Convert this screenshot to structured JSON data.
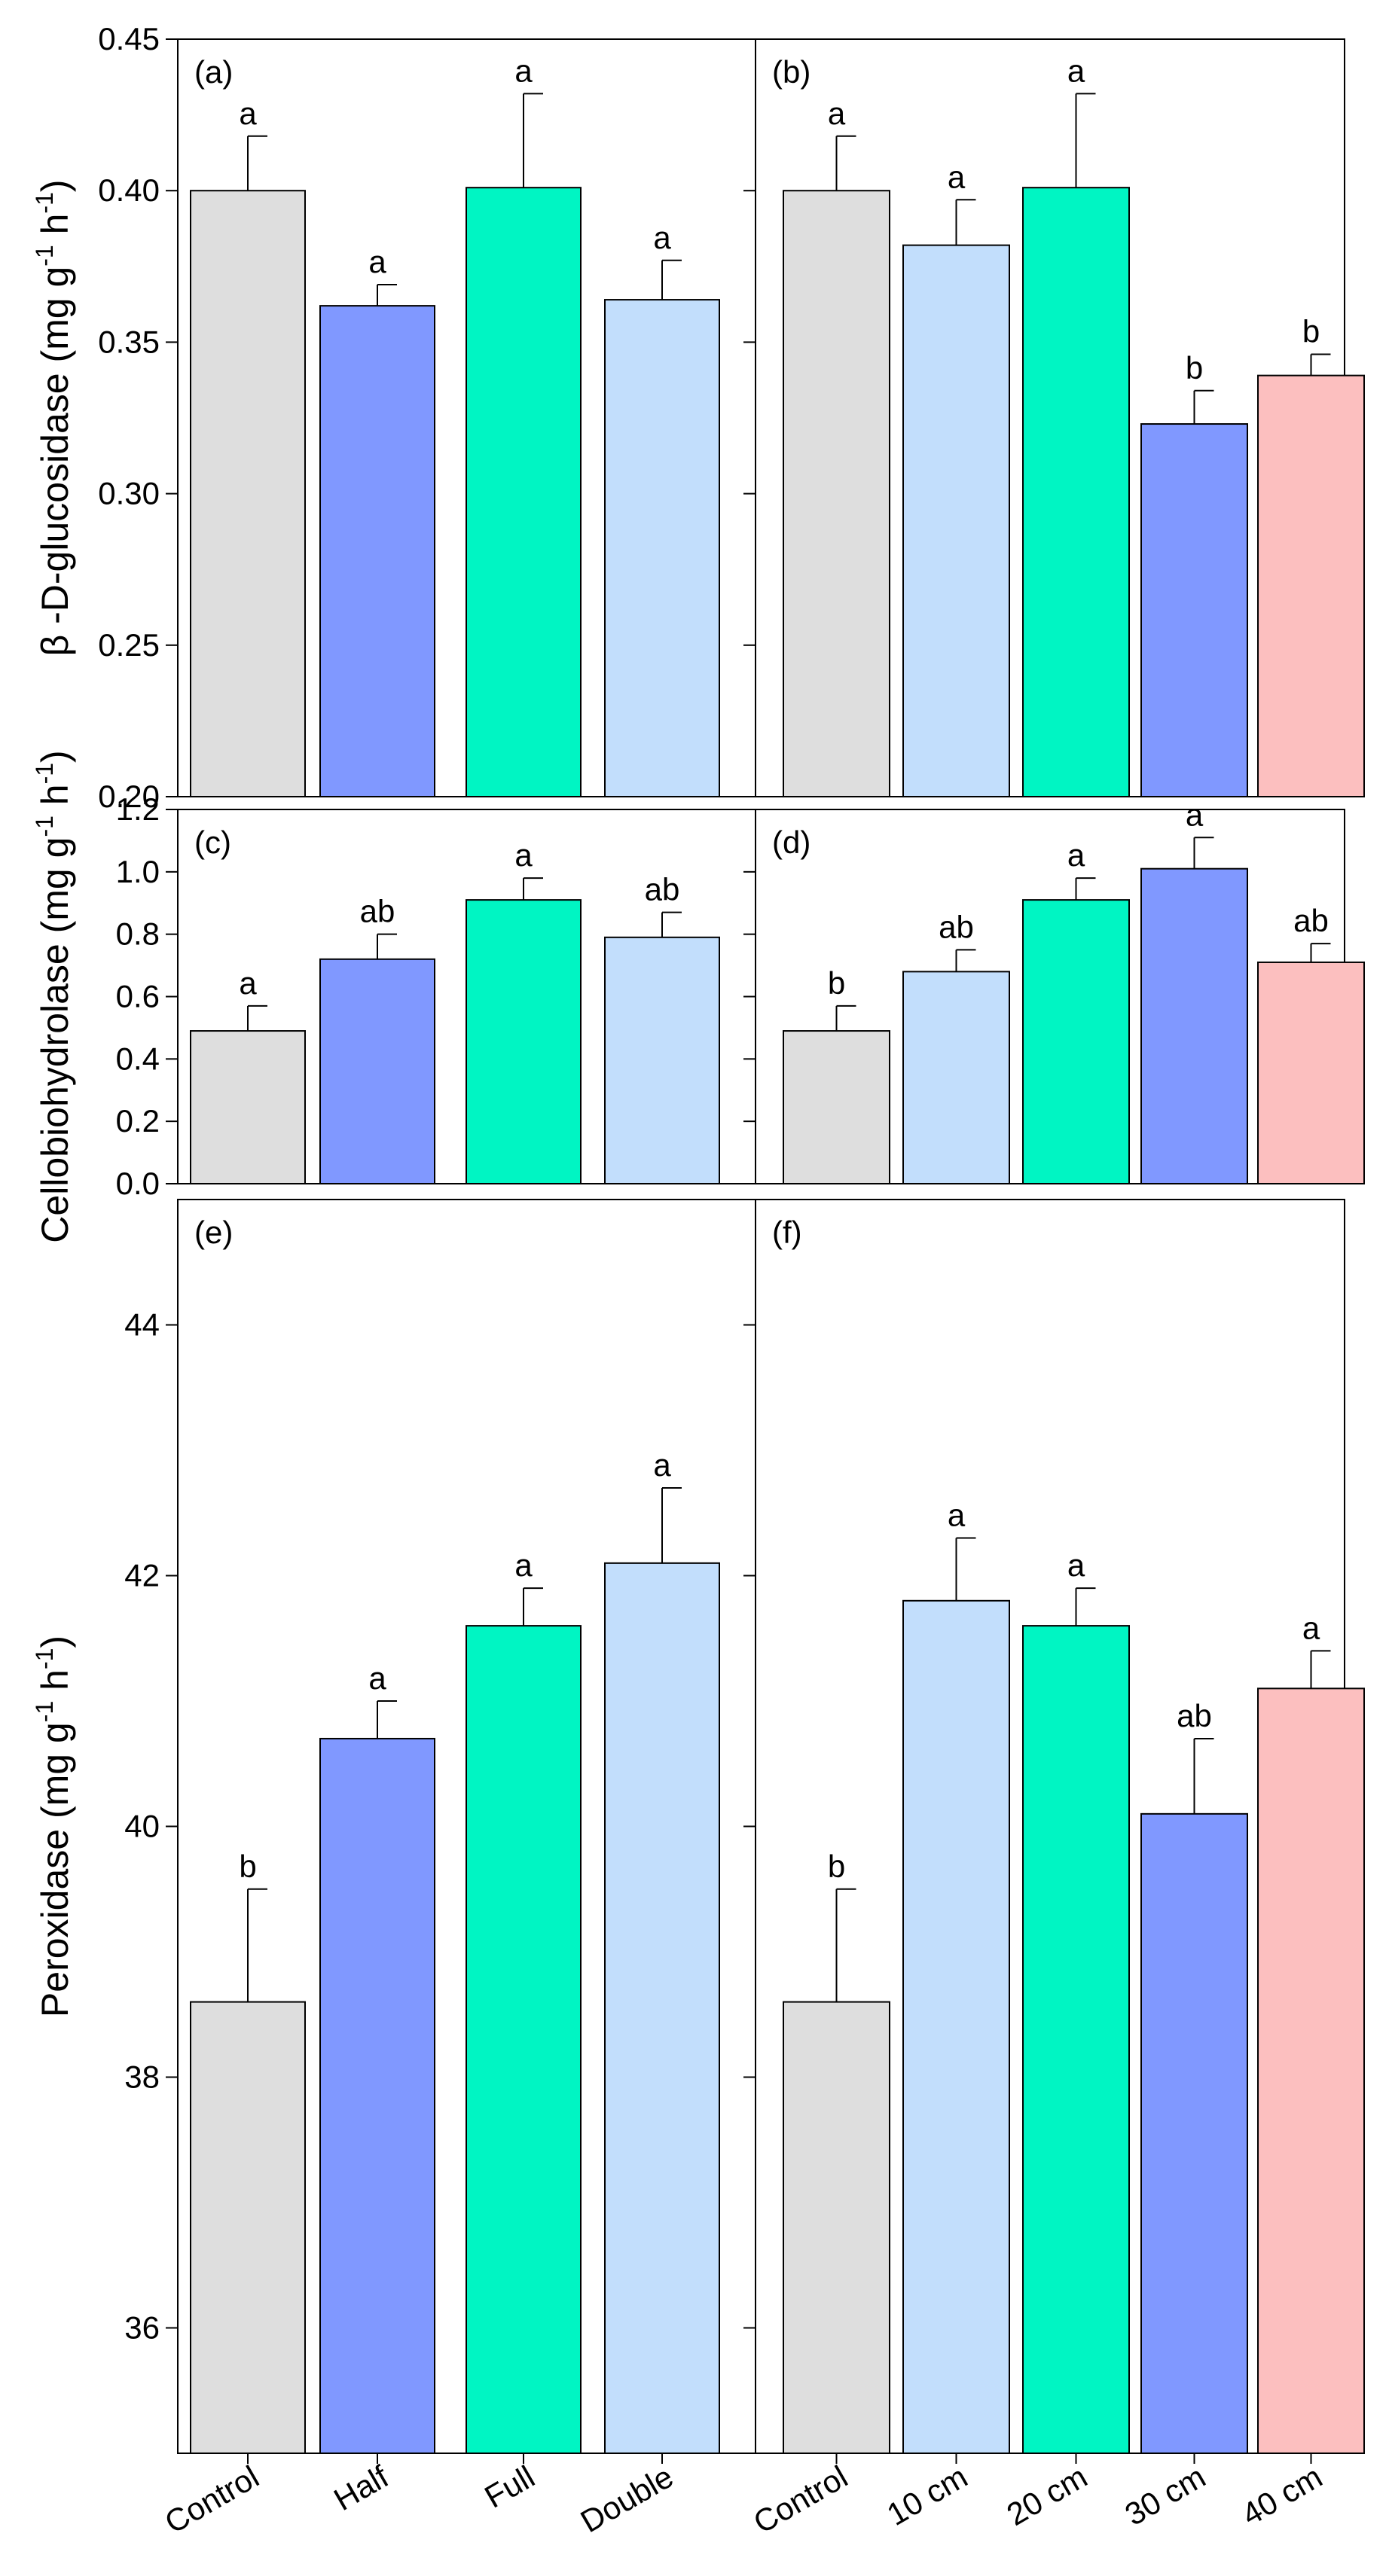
{
  "chart_data": [
    {
      "type": "bar",
      "panel": "(a)",
      "ylabel": "β -D-glucosidase (mg g-1 h-1)",
      "ylabel_main": "β -D-glucosidase (mg g",
      "ylabel_mid": " h",
      "ylabel_end": ")",
      "ylim": [
        0.2,
        0.45
      ],
      "yticks": [
        "0.20",
        "0.25",
        "0.30",
        "0.35",
        "0.40",
        "0.45"
      ],
      "categories": [
        "Control",
        "Half",
        "Full",
        "Double"
      ],
      "values": [
        0.4,
        0.362,
        0.401,
        0.364
      ],
      "errors": [
        0.018,
        0.007,
        0.031,
        0.013
      ],
      "letters": [
        "a",
        "a",
        "a",
        "a"
      ],
      "colors": [
        "#dedede",
        "#8098ff",
        "#00f5c3",
        "#c2defc"
      ]
    },
    {
      "type": "bar",
      "panel": "(b)",
      "ylim": [
        0.2,
        0.45
      ],
      "categories": [
        "Control",
        "10 cm",
        "20 cm",
        "30 cm",
        "40 cm"
      ],
      "values": [
        0.4,
        0.382,
        0.401,
        0.323,
        0.339
      ],
      "errors": [
        0.018,
        0.015,
        0.031,
        0.011,
        0.007
      ],
      "letters": [
        "a",
        "a",
        "a",
        "b",
        "b"
      ],
      "colors": [
        "#dedede",
        "#c2defc",
        "#00f5c3",
        "#8098ff",
        "#fcbfbf"
      ]
    },
    {
      "type": "bar",
      "panel": "(c)",
      "ylabel": "Cellobiohydrolase (mg g-1 h-1)",
      "ylabel_main": "Cellobiohydrolase (mg g",
      "ylabel_mid": " h",
      "ylabel_end": ")",
      "ylim": [
        0.0,
        1.2
      ],
      "yticks": [
        "0.0",
        "0.2",
        "0.4",
        "0.6",
        "0.8",
        "1.0",
        "1.2"
      ],
      "categories": [
        "Control",
        "Half",
        "Full",
        "Double"
      ],
      "values": [
        0.49,
        0.72,
        0.91,
        0.79
      ],
      "errors": [
        0.08,
        0.08,
        0.07,
        0.08
      ],
      "letters": [
        "a",
        "ab",
        "a",
        "ab"
      ],
      "colors": [
        "#dedede",
        "#8098ff",
        "#00f5c3",
        "#c2defc"
      ]
    },
    {
      "type": "bar",
      "panel": "(d)",
      "ylim": [
        0.0,
        1.2
      ],
      "categories": [
        "Control",
        "10 cm",
        "20 cm",
        "30 cm",
        "40 cm"
      ],
      "values": [
        0.49,
        0.68,
        0.91,
        1.01,
        0.71
      ],
      "errors": [
        0.08,
        0.07,
        0.07,
        0.1,
        0.06
      ],
      "letters": [
        "b",
        "ab",
        "a",
        "a",
        "ab"
      ],
      "colors": [
        "#dedede",
        "#c2defc",
        "#00f5c3",
        "#8098ff",
        "#fcbfbf"
      ]
    },
    {
      "type": "bar",
      "panel": "(e)",
      "ylabel": "Peroxidase (mg g-1 h-1)",
      "ylabel_main": "Peroxidase (mg g",
      "ylabel_mid": " h",
      "ylabel_end": ")",
      "ylim": [
        35,
        45
      ],
      "yticks": [
        "36",
        "38",
        "40",
        "42",
        "44"
      ],
      "categories": [
        "Control",
        "Half",
        "Full",
        "Double"
      ],
      "values": [
        38.6,
        40.7,
        41.6,
        42.1
      ],
      "errors": [
        0.9,
        0.3,
        0.3,
        0.6
      ],
      "letters": [
        "b",
        "a",
        "a",
        "a"
      ],
      "colors": [
        "#dedede",
        "#8098ff",
        "#00f5c3",
        "#c2defc"
      ]
    },
    {
      "type": "bar",
      "panel": "(f)",
      "ylim": [
        35,
        45
      ],
      "categories": [
        "Control",
        "10 cm",
        "20 cm",
        "30 cm",
        "40 cm"
      ],
      "values": [
        38.6,
        41.8,
        41.6,
        40.1,
        41.1
      ],
      "errors": [
        0.9,
        0.5,
        0.3,
        0.6,
        0.3
      ],
      "letters": [
        "b",
        "a",
        "a",
        "ab",
        "a"
      ],
      "colors": [
        "#dedede",
        "#c2defc",
        "#00f5c3",
        "#8098ff",
        "#fcbfbf"
      ]
    }
  ],
  "ylabel_sup": "-1"
}
